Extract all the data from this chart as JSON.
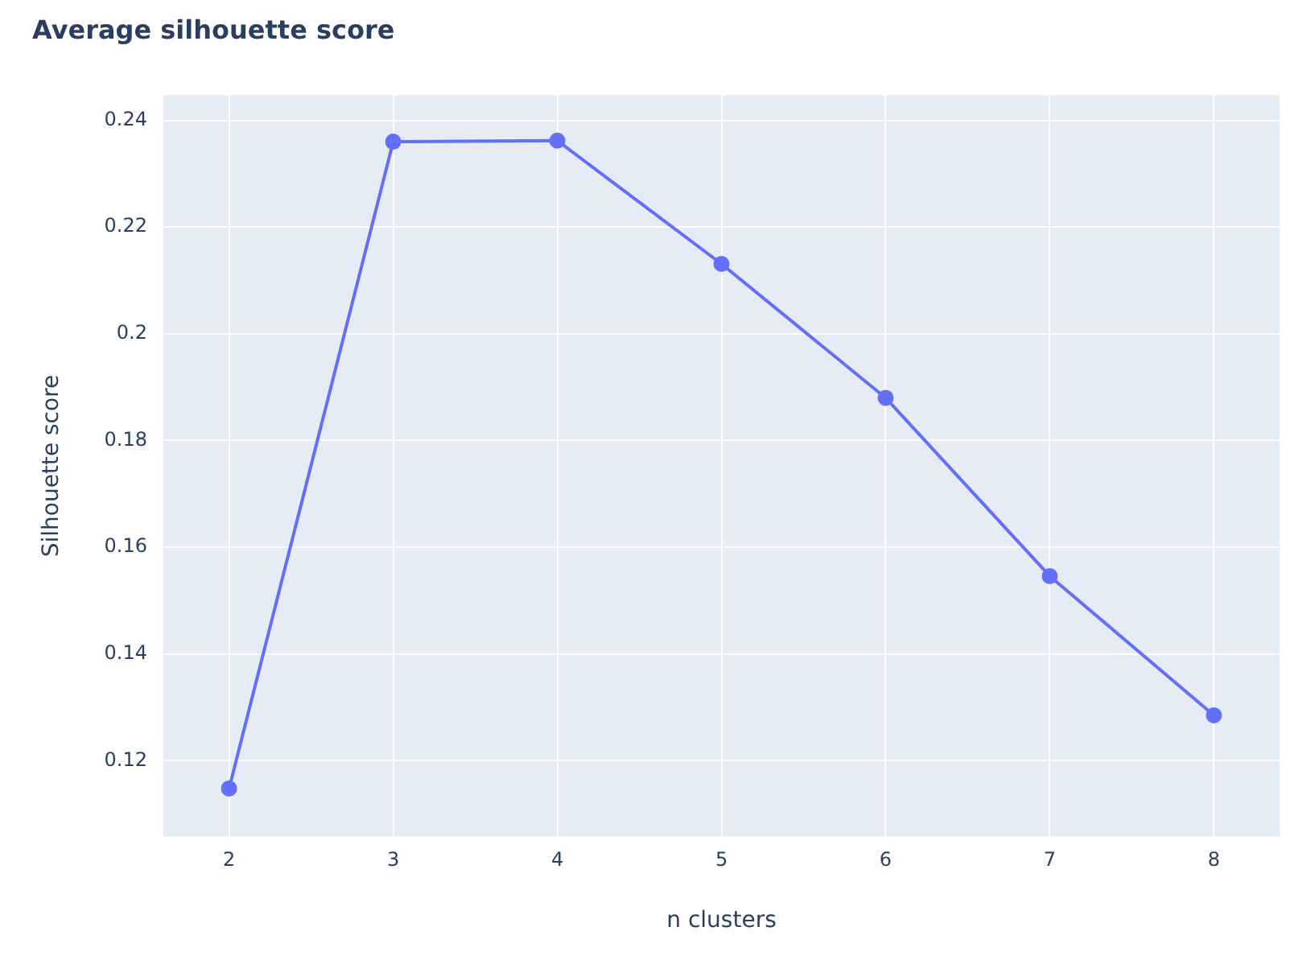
{
  "chart_data": {
    "type": "line",
    "title": "Average silhouette score",
    "xlabel": "n clusters",
    "ylabel": "Silhouette score",
    "x": [
      2,
      3,
      4,
      5,
      6,
      7,
      8
    ],
    "series": [
      {
        "color": "#636efa",
        "values": [
          0.1148,
          0.236,
          0.2362,
          0.2131,
          0.188,
          0.1546,
          0.1285
        ]
      }
    ],
    "xlim": [
      1.6,
      8.4
    ],
    "xticks": [
      2,
      3,
      4,
      5,
      6,
      7,
      8
    ],
    "ylim": [
      0.1058,
      0.2447
    ],
    "yticks": [
      0.12,
      0.14,
      0.16,
      0.18,
      {
        "value": 0.2,
        "label": "0.2"
      },
      0.22,
      0.24
    ],
    "grid": true,
    "legend": false,
    "marker": "circle",
    "line_style": "solid"
  }
}
